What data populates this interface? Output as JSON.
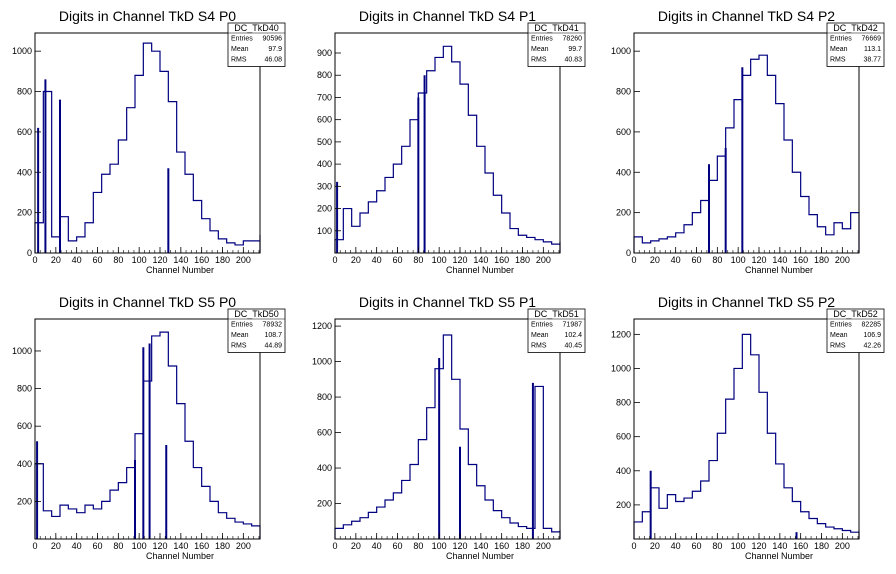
{
  "colors": {
    "line": "#000080",
    "frame": "#000000",
    "background": "#ffffff"
  },
  "chart_data": [
    {
      "type": "histogram",
      "title": "Digits in Channel TkD S4 P0",
      "xlabel": "Channel Number",
      "xlim": [
        0,
        216
      ],
      "ylim": [
        0,
        1090
      ],
      "xticks": [
        0,
        20,
        40,
        60,
        80,
        100,
        120,
        140,
        160,
        180,
        200
      ],
      "yticks": [
        0,
        200,
        400,
        600,
        800,
        1000
      ],
      "stats": {
        "name": "DC_TkD40",
        "entries_label": "Entries",
        "entries": "90596",
        "mean_label": "Mean",
        "mean": "97.9",
        "rms_label": "RMS",
        "rms": "46.08"
      },
      "x": [
        0,
        8,
        16,
        24,
        32,
        40,
        48,
        56,
        64,
        72,
        80,
        88,
        96,
        104,
        112,
        120,
        128,
        136,
        144,
        152,
        160,
        168,
        176,
        184,
        192,
        200,
        208,
        216
      ],
      "values": [
        150,
        800,
        80,
        180,
        60,
        80,
        150,
        300,
        390,
        440,
        560,
        720,
        880,
        1040,
        1000,
        900,
        750,
        500,
        390,
        260,
        170,
        110,
        70,
        50,
        40,
        60,
        60,
        90
      ],
      "spikes": [
        {
          "x": 128,
          "y": 420
        },
        {
          "x": 10,
          "y": 860
        },
        {
          "x": 3,
          "y": 620
        },
        {
          "x": 24,
          "y": 760
        }
      ]
    },
    {
      "type": "histogram",
      "title": "Digits in Channel TkD S4 P1",
      "xlabel": "Channel Number",
      "xlim": [
        0,
        216
      ],
      "ylim": [
        0,
        990
      ],
      "xticks": [
        0,
        20,
        40,
        60,
        80,
        100,
        120,
        140,
        160,
        180,
        200
      ],
      "yticks": [
        100,
        200,
        300,
        400,
        500,
        600,
        700,
        800,
        900
      ],
      "stats": {
        "name": "DC_TkD41",
        "entries_label": "Entries",
        "entries": "78260",
        "mean_label": "Mean",
        "mean": "99.7",
        "rms_label": "RMS",
        "rms": "40.83"
      },
      "x": [
        0,
        8,
        16,
        24,
        32,
        40,
        48,
        56,
        64,
        72,
        80,
        88,
        96,
        104,
        112,
        120,
        128,
        136,
        144,
        152,
        160,
        168,
        176,
        184,
        192,
        200,
        208,
        216
      ],
      "values": [
        60,
        200,
        120,
        180,
        230,
        280,
        340,
        400,
        480,
        600,
        720,
        820,
        880,
        930,
        860,
        760,
        620,
        480,
        360,
        260,
        180,
        110,
        80,
        70,
        60,
        50,
        40,
        50
      ],
      "spikes": [
        {
          "x": 2,
          "y": 320
        },
        {
          "x": 80,
          "y": 700
        },
        {
          "x": 86,
          "y": 800
        }
      ]
    },
    {
      "type": "histogram",
      "title": "Digits in Channel TkD S4 P2",
      "xlabel": "Channel Number",
      "xlim": [
        0,
        216
      ],
      "ylim": [
        0,
        1090
      ],
      "xticks": [
        0,
        20,
        40,
        60,
        80,
        100,
        120,
        140,
        160,
        180,
        200
      ],
      "yticks": [
        0,
        200,
        400,
        600,
        800,
        1000
      ],
      "stats": {
        "name": "DC_TkD42",
        "entries_label": "Entries",
        "entries": "76669",
        "mean_label": "Mean",
        "mean": "113.1",
        "rms_label": "RMS",
        "rms": "38.77"
      },
      "x": [
        0,
        8,
        16,
        24,
        32,
        40,
        48,
        56,
        64,
        72,
        80,
        88,
        96,
        104,
        112,
        120,
        128,
        136,
        144,
        152,
        160,
        168,
        176,
        184,
        192,
        200,
        208,
        216
      ],
      "values": [
        80,
        50,
        60,
        70,
        80,
        100,
        140,
        200,
        260,
        360,
        480,
        620,
        760,
        880,
        960,
        980,
        880,
        740,
        560,
        400,
        280,
        190,
        130,
        90,
        150,
        120,
        200,
        100
      ],
      "spikes": [
        {
          "x": 104,
          "y": 920
        },
        {
          "x": 72,
          "y": 440
        },
        {
          "x": 88,
          "y": 520
        }
      ]
    },
    {
      "type": "histogram",
      "title": "Digits in Channel TkD S5 P0",
      "xlabel": "Channel Number",
      "xlim": [
        0,
        216
      ],
      "ylim": [
        0,
        1170
      ],
      "xticks": [
        0,
        20,
        40,
        60,
        80,
        100,
        120,
        140,
        160,
        180,
        200
      ],
      "yticks": [
        200,
        400,
        600,
        800,
        1000
      ],
      "stats": {
        "name": "DC_TkD50",
        "entries_label": "Entries",
        "entries": "78932",
        "mean_label": "Mean",
        "mean": "108.7",
        "rms_label": "RMS",
        "rms": "44.89"
      },
      "x": [
        0,
        8,
        16,
        24,
        32,
        40,
        48,
        56,
        64,
        72,
        80,
        88,
        96,
        104,
        112,
        120,
        128,
        136,
        144,
        152,
        160,
        168,
        176,
        184,
        192,
        200,
        208,
        216
      ],
      "values": [
        400,
        150,
        120,
        180,
        160,
        140,
        180,
        160,
        200,
        260,
        300,
        380,
        560,
        840,
        1080,
        1100,
        920,
        720,
        520,
        380,
        280,
        200,
        140,
        110,
        90,
        80,
        70,
        60
      ],
      "spikes": [
        {
          "x": 104,
          "y": 1020
        },
        {
          "x": 110,
          "y": 1040
        },
        {
          "x": 96,
          "y": 420
        },
        {
          "x": 126,
          "y": 500
        },
        {
          "x": 2,
          "y": 520
        }
      ]
    },
    {
      "type": "histogram",
      "title": "Digits in Channel TkD S5 P1",
      "xlabel": "Channel Number",
      "xlim": [
        0,
        216
      ],
      "ylim": [
        0,
        1240
      ],
      "xticks": [
        0,
        20,
        40,
        60,
        80,
        100,
        120,
        140,
        160,
        180,
        200
      ],
      "yticks": [
        200,
        400,
        600,
        800,
        1000,
        1200
      ],
      "stats": {
        "name": "DC_TkD51",
        "entries_label": "Entries",
        "entries": "71987",
        "mean_label": "Mean",
        "mean": "102.4",
        "rms_label": "RMS",
        "rms": "40.45"
      },
      "x": [
        0,
        8,
        16,
        24,
        32,
        40,
        48,
        56,
        64,
        72,
        80,
        88,
        96,
        104,
        112,
        120,
        128,
        136,
        144,
        152,
        160,
        168,
        176,
        184,
        192,
        200,
        208,
        216
      ],
      "values": [
        60,
        80,
        100,
        120,
        150,
        180,
        220,
        260,
        330,
        420,
        560,
        740,
        960,
        1150,
        900,
        620,
        420,
        300,
        220,
        160,
        120,
        90,
        70,
        60,
        860,
        60,
        40,
        50
      ],
      "spikes": [
        {
          "x": 100,
          "y": 1020
        },
        {
          "x": 120,
          "y": 520
        },
        {
          "x": 190,
          "y": 880
        }
      ]
    },
    {
      "type": "histogram",
      "title": "Digits in Channel TkD S5 P2",
      "xlabel": "Channel Number",
      "xlim": [
        0,
        216
      ],
      "ylim": [
        0,
        1290
      ],
      "xticks": [
        0,
        20,
        40,
        60,
        80,
        100,
        120,
        140,
        160,
        180,
        200
      ],
      "yticks": [
        200,
        400,
        600,
        800,
        1000,
        1200
      ],
      "stats": {
        "name": "DC_TkD52",
        "entries_label": "Entries",
        "entries": "82285",
        "mean_label": "Mean",
        "mean": "106.9",
        "rms_label": "RMS",
        "rms": "42.26"
      },
      "x": [
        0,
        8,
        16,
        24,
        32,
        40,
        48,
        56,
        64,
        72,
        80,
        88,
        96,
        104,
        112,
        120,
        128,
        136,
        144,
        152,
        160,
        168,
        176,
        184,
        192,
        200,
        208,
        216
      ],
      "values": [
        100,
        160,
        300,
        180,
        260,
        220,
        240,
        280,
        340,
        460,
        620,
        820,
        1000,
        1200,
        1080,
        860,
        620,
        440,
        300,
        220,
        160,
        120,
        90,
        70,
        60,
        50,
        40,
        50
      ],
      "spikes": [
        {
          "x": 156,
          "y": 40
        },
        {
          "x": 16,
          "y": 400
        }
      ]
    }
  ]
}
